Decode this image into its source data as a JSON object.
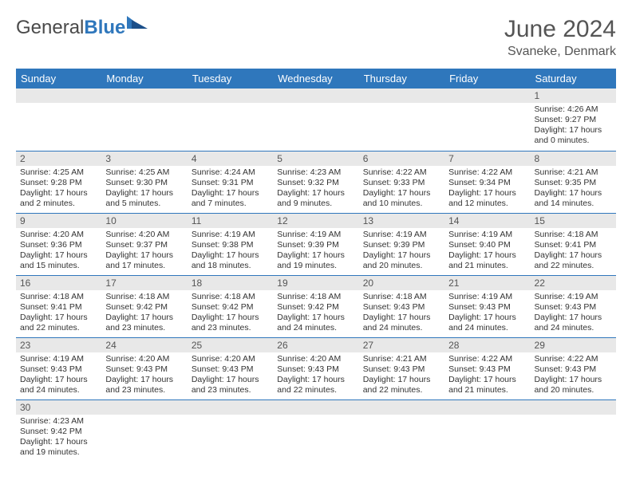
{
  "brand": {
    "part1": "General",
    "part2": "Blue"
  },
  "title": "June 2024",
  "location": "Svaneke, Denmark",
  "colors": {
    "header_bg": "#2f77bc",
    "header_text": "#ffffff",
    "daynum_bg": "#e8e8e8",
    "border": "#2f77bc",
    "page_bg": "#ffffff",
    "text": "#333333"
  },
  "fonts": {
    "title_size": 30,
    "location_size": 16,
    "dayheader_size": 13,
    "cell_size": 10.5
  },
  "day_headers": [
    "Sunday",
    "Monday",
    "Tuesday",
    "Wednesday",
    "Thursday",
    "Friday",
    "Saturday"
  ],
  "weeks": [
    [
      {
        "n": "",
        "lines": []
      },
      {
        "n": "",
        "lines": []
      },
      {
        "n": "",
        "lines": []
      },
      {
        "n": "",
        "lines": []
      },
      {
        "n": "",
        "lines": []
      },
      {
        "n": "",
        "lines": []
      },
      {
        "n": "1",
        "lines": [
          "Sunrise: 4:26 AM",
          "Sunset: 9:27 PM",
          "Daylight: 17 hours and 0 minutes."
        ]
      }
    ],
    [
      {
        "n": "2",
        "lines": [
          "Sunrise: 4:25 AM",
          "Sunset: 9:28 PM",
          "Daylight: 17 hours and 2 minutes."
        ]
      },
      {
        "n": "3",
        "lines": [
          "Sunrise: 4:25 AM",
          "Sunset: 9:30 PM",
          "Daylight: 17 hours and 5 minutes."
        ]
      },
      {
        "n": "4",
        "lines": [
          "Sunrise: 4:24 AM",
          "Sunset: 9:31 PM",
          "Daylight: 17 hours and 7 minutes."
        ]
      },
      {
        "n": "5",
        "lines": [
          "Sunrise: 4:23 AM",
          "Sunset: 9:32 PM",
          "Daylight: 17 hours and 9 minutes."
        ]
      },
      {
        "n": "6",
        "lines": [
          "Sunrise: 4:22 AM",
          "Sunset: 9:33 PM",
          "Daylight: 17 hours and 10 minutes."
        ]
      },
      {
        "n": "7",
        "lines": [
          "Sunrise: 4:22 AM",
          "Sunset: 9:34 PM",
          "Daylight: 17 hours and 12 minutes."
        ]
      },
      {
        "n": "8",
        "lines": [
          "Sunrise: 4:21 AM",
          "Sunset: 9:35 PM",
          "Daylight: 17 hours and 14 minutes."
        ]
      }
    ],
    [
      {
        "n": "9",
        "lines": [
          "Sunrise: 4:20 AM",
          "Sunset: 9:36 PM",
          "Daylight: 17 hours and 15 minutes."
        ]
      },
      {
        "n": "10",
        "lines": [
          "Sunrise: 4:20 AM",
          "Sunset: 9:37 PM",
          "Daylight: 17 hours and 17 minutes."
        ]
      },
      {
        "n": "11",
        "lines": [
          "Sunrise: 4:19 AM",
          "Sunset: 9:38 PM",
          "Daylight: 17 hours and 18 minutes."
        ]
      },
      {
        "n": "12",
        "lines": [
          "Sunrise: 4:19 AM",
          "Sunset: 9:39 PM",
          "Daylight: 17 hours and 19 minutes."
        ]
      },
      {
        "n": "13",
        "lines": [
          "Sunrise: 4:19 AM",
          "Sunset: 9:39 PM",
          "Daylight: 17 hours and 20 minutes."
        ]
      },
      {
        "n": "14",
        "lines": [
          "Sunrise: 4:19 AM",
          "Sunset: 9:40 PM",
          "Daylight: 17 hours and 21 minutes."
        ]
      },
      {
        "n": "15",
        "lines": [
          "Sunrise: 4:18 AM",
          "Sunset: 9:41 PM",
          "Daylight: 17 hours and 22 minutes."
        ]
      }
    ],
    [
      {
        "n": "16",
        "lines": [
          "Sunrise: 4:18 AM",
          "Sunset: 9:41 PM",
          "Daylight: 17 hours and 22 minutes."
        ]
      },
      {
        "n": "17",
        "lines": [
          "Sunrise: 4:18 AM",
          "Sunset: 9:42 PM",
          "Daylight: 17 hours and 23 minutes."
        ]
      },
      {
        "n": "18",
        "lines": [
          "Sunrise: 4:18 AM",
          "Sunset: 9:42 PM",
          "Daylight: 17 hours and 23 minutes."
        ]
      },
      {
        "n": "19",
        "lines": [
          "Sunrise: 4:18 AM",
          "Sunset: 9:42 PM",
          "Daylight: 17 hours and 24 minutes."
        ]
      },
      {
        "n": "20",
        "lines": [
          "Sunrise: 4:18 AM",
          "Sunset: 9:43 PM",
          "Daylight: 17 hours and 24 minutes."
        ]
      },
      {
        "n": "21",
        "lines": [
          "Sunrise: 4:19 AM",
          "Sunset: 9:43 PM",
          "Daylight: 17 hours and 24 minutes."
        ]
      },
      {
        "n": "22",
        "lines": [
          "Sunrise: 4:19 AM",
          "Sunset: 9:43 PM",
          "Daylight: 17 hours and 24 minutes."
        ]
      }
    ],
    [
      {
        "n": "23",
        "lines": [
          "Sunrise: 4:19 AM",
          "Sunset: 9:43 PM",
          "Daylight: 17 hours and 24 minutes."
        ]
      },
      {
        "n": "24",
        "lines": [
          "Sunrise: 4:20 AM",
          "Sunset: 9:43 PM",
          "Daylight: 17 hours and 23 minutes."
        ]
      },
      {
        "n": "25",
        "lines": [
          "Sunrise: 4:20 AM",
          "Sunset: 9:43 PM",
          "Daylight: 17 hours and 23 minutes."
        ]
      },
      {
        "n": "26",
        "lines": [
          "Sunrise: 4:20 AM",
          "Sunset: 9:43 PM",
          "Daylight: 17 hours and 22 minutes."
        ]
      },
      {
        "n": "27",
        "lines": [
          "Sunrise: 4:21 AM",
          "Sunset: 9:43 PM",
          "Daylight: 17 hours and 22 minutes."
        ]
      },
      {
        "n": "28",
        "lines": [
          "Sunrise: 4:22 AM",
          "Sunset: 9:43 PM",
          "Daylight: 17 hours and 21 minutes."
        ]
      },
      {
        "n": "29",
        "lines": [
          "Sunrise: 4:22 AM",
          "Sunset: 9:43 PM",
          "Daylight: 17 hours and 20 minutes."
        ]
      }
    ],
    [
      {
        "n": "30",
        "lines": [
          "Sunrise: 4:23 AM",
          "Sunset: 9:42 PM",
          "Daylight: 17 hours and 19 minutes."
        ]
      },
      {
        "n": "",
        "lines": []
      },
      {
        "n": "",
        "lines": []
      },
      {
        "n": "",
        "lines": []
      },
      {
        "n": "",
        "lines": []
      },
      {
        "n": "",
        "lines": []
      },
      {
        "n": "",
        "lines": []
      }
    ]
  ]
}
